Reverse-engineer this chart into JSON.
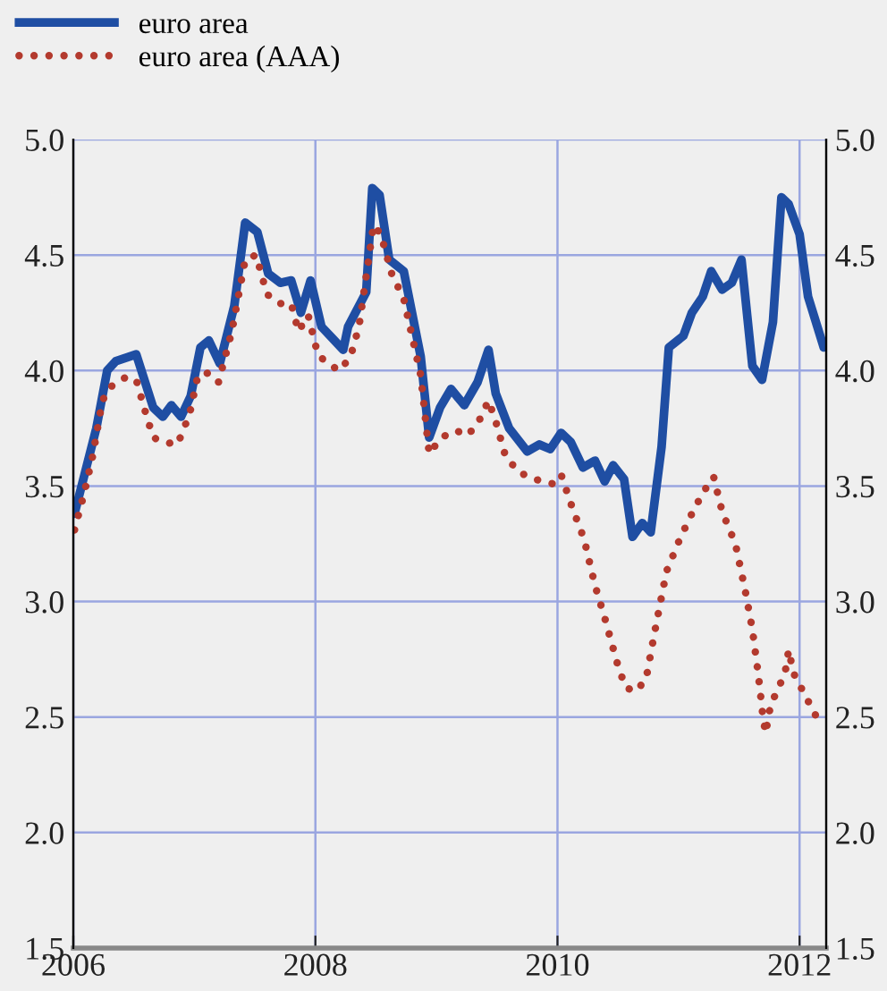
{
  "chart_data": {
    "type": "line",
    "legend": "top left",
    "grid": true,
    "xlim": [
      2006,
      2012.22
    ],
    "xticks": [
      2006,
      2008,
      2010,
      2012
    ],
    "ylim": [
      1.5,
      5.0
    ],
    "yticks": [
      {
        "value": 1.5,
        "label": "1.5"
      },
      {
        "value": 2.0,
        "label": "2.0"
      },
      {
        "value": 2.5,
        "label": "2.5"
      },
      {
        "value": 3.0,
        "label": "3.0"
      },
      {
        "value": 3.5,
        "label": "3.5"
      },
      {
        "value": 4.0,
        "label": "4.0"
      },
      {
        "value": 4.5,
        "label": "4.5"
      },
      {
        "value": 5.0,
        "label": "5.0"
      }
    ],
    "y2lim": [
      1.5,
      5.0
    ],
    "y2ticks": [
      {
        "value": 1.5,
        "label": "1.5"
      },
      {
        "value": 2.0,
        "label": "2.0"
      },
      {
        "value": 2.5,
        "label": "2.5"
      },
      {
        "value": 3.0,
        "label": "3.0"
      },
      {
        "value": 3.5,
        "label": "3.5"
      },
      {
        "value": 4.0,
        "label": "4.0"
      },
      {
        "value": 4.5,
        "label": "4.5"
      },
      {
        "value": 5.0,
        "label": "5.0"
      }
    ],
    "series": [
      {
        "name": "euro area",
        "color": "#1f4ea3",
        "line_style": "solid",
        "x": [
          2006.01,
          2006.19,
          2006.28,
          2006.35,
          2006.52,
          2006.66,
          2006.74,
          2006.81,
          2006.89,
          2006.97,
          2007.05,
          2007.12,
          2007.21,
          2007.33,
          2007.42,
          2007.52,
          2007.61,
          2007.71,
          2007.8,
          2007.88,
          2007.96,
          2008.05,
          2008.14,
          2008.23,
          2008.27,
          2008.42,
          2008.47,
          2008.53,
          2008.61,
          2008.73,
          2008.87,
          2008.94,
          2009.03,
          2009.12,
          2009.23,
          2009.34,
          2009.43,
          2009.49,
          2009.6,
          2009.75,
          2009.85,
          2009.94,
          2010.03,
          2010.11,
          2010.21,
          2010.31,
          2010.39,
          2010.46,
          2010.55,
          2010.62,
          2010.7,
          2010.77,
          2010.86,
          2010.92,
          2011.04,
          2011.11,
          2011.2,
          2011.27,
          2011.36,
          2011.44,
          2011.52,
          2011.61,
          2011.69,
          2011.78,
          2011.85,
          2011.91,
          2012.0,
          2012.07,
          2012.2
        ],
        "values": [
          3.38,
          3.75,
          4.0,
          4.04,
          4.07,
          3.84,
          3.8,
          3.85,
          3.8,
          3.89,
          4.1,
          4.13,
          4.03,
          4.28,
          4.64,
          4.6,
          4.42,
          4.38,
          4.39,
          4.25,
          4.39,
          4.19,
          4.14,
          4.09,
          4.19,
          4.34,
          4.79,
          4.76,
          4.48,
          4.43,
          4.06,
          3.71,
          3.84,
          3.92,
          3.85,
          3.95,
          4.09,
          3.9,
          3.75,
          3.65,
          3.68,
          3.66,
          3.73,
          3.69,
          3.58,
          3.61,
          3.52,
          3.59,
          3.53,
          3.28,
          3.34,
          3.3,
          3.67,
          4.1,
          4.15,
          4.25,
          4.32,
          4.43,
          4.35,
          4.38,
          4.48,
          4.02,
          3.96,
          4.21,
          4.75,
          4.72,
          4.59,
          4.32,
          4.1
        ]
      },
      {
        "name": "euro area (AAA)",
        "color": "#b33a2e",
        "line_style": "dotted",
        "x": [
          2006.01,
          2006.09,
          2006.16,
          2006.24,
          2006.31,
          2006.43,
          2006.52,
          2006.59,
          2006.66,
          2006.75,
          2006.86,
          2006.96,
          2007.03,
          2007.12,
          2007.2,
          2007.31,
          2007.42,
          2007.51,
          2007.6,
          2007.71,
          2007.8,
          2007.86,
          2007.94,
          2008.02,
          2008.1,
          2008.2,
          2008.29,
          2008.36,
          2008.48,
          2008.54,
          2008.63,
          2008.73,
          2008.87,
          2008.94,
          2009.04,
          2009.16,
          2009.26,
          2009.35,
          2009.43,
          2009.49,
          2009.57,
          2009.68,
          2009.81,
          2009.96,
          2010.03,
          2010.12,
          2010.22,
          2010.31,
          2010.39,
          2010.49,
          2010.56,
          2010.64,
          2010.73,
          2010.8,
          2010.9,
          2011.01,
          2011.1,
          2011.2,
          2011.29,
          2011.36,
          2011.47,
          2011.55,
          2011.61,
          2011.66,
          2011.7,
          2011.72,
          2011.76,
          2011.82,
          2011.88,
          2011.91,
          2011.95,
          2012.0,
          2012.07,
          2012.16
        ],
        "values": [
          3.31,
          3.47,
          3.63,
          3.87,
          3.93,
          3.97,
          3.96,
          3.83,
          3.71,
          3.69,
          3.68,
          3.81,
          3.98,
          3.99,
          3.95,
          4.17,
          4.48,
          4.5,
          4.33,
          4.29,
          4.29,
          4.17,
          4.24,
          4.07,
          4.03,
          4.0,
          4.06,
          4.19,
          4.63,
          4.59,
          4.42,
          4.31,
          3.98,
          3.64,
          3.71,
          3.74,
          3.72,
          3.78,
          3.87,
          3.78,
          3.63,
          3.56,
          3.53,
          3.51,
          3.55,
          3.41,
          3.27,
          3.07,
          2.93,
          2.74,
          2.63,
          2.61,
          2.66,
          2.86,
          3.13,
          3.27,
          3.37,
          3.47,
          3.54,
          3.39,
          3.25,
          3.05,
          2.88,
          2.68,
          2.49,
          2.43,
          2.55,
          2.62,
          2.69,
          2.79,
          2.69,
          2.64,
          2.57,
          2.48
        ]
      }
    ]
  }
}
